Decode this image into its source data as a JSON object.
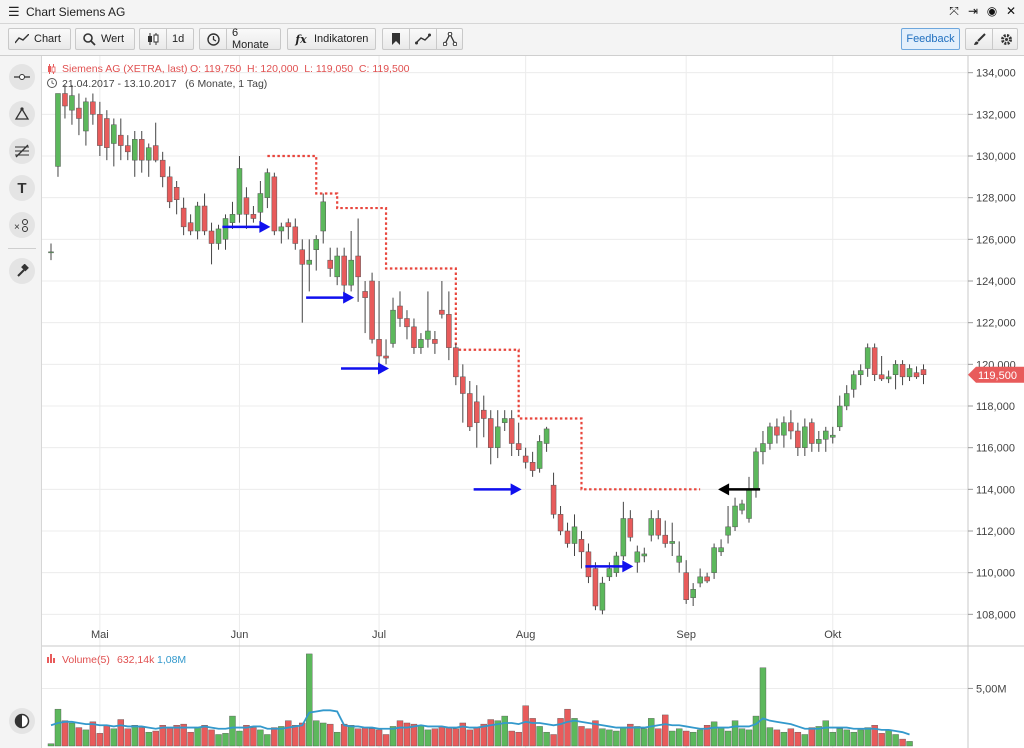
{
  "window": {
    "title": "Chart Siemens AG"
  },
  "toolbar": {
    "chart_label": "Chart",
    "wert_label": "Wert",
    "interval_label": "1d",
    "range_label": "6 Monate",
    "indicators_label": "Indikatoren",
    "feedback_label": "Feedback"
  },
  "legend": {
    "instrument": "Siemens AG (XETRA, last)",
    "ohlc": "O: 119,750  H: 120,000  L: 119,050  C: 119,500",
    "period": "21.04.2017 - 13.10.2017   (6 Monate, 1 Tag)",
    "volume_label": "Volume(5)",
    "volume_value": "632,14k",
    "volume_avg": "1,08M"
  },
  "colors": {
    "up": "#5cb85c",
    "down": "#e85b5b",
    "stop": "#e8453c",
    "arrow": "#1010ee",
    "avg": "#3399cc",
    "grid": "#ececec"
  },
  "chart_data": {
    "type": "candlestick",
    "instrument": "Siemens AG",
    "last_price_label": "119,500",
    "ylim": [
      107.2,
      134.8
    ],
    "yticks": [
      108,
      110,
      112,
      114,
      116,
      118,
      120,
      122,
      124,
      126,
      128,
      130,
      132,
      134
    ],
    "ytick_labels": [
      "108,000",
      "110,000",
      "112,000",
      "114,000",
      "116,000",
      "118,000",
      "120,000",
      "122,000",
      "124,000",
      "126,000",
      "128,000",
      "130,000",
      "132,000",
      "134,000"
    ],
    "xlabels": [
      {
        "label": "Mai",
        "index": 7
      },
      {
        "label": "Jun",
        "index": 27
      },
      {
        "label": "Jul",
        "index": 47
      },
      {
        "label": "Aug",
        "index": 68
      },
      {
        "label": "Sep",
        "index": 91
      },
      {
        "label": "Okt",
        "index": 112
      }
    ],
    "candles": [
      [
        125.4,
        125.8,
        125.0,
        125.4
      ],
      [
        129.5,
        133.0,
        129.0,
        133.0
      ],
      [
        133.0,
        133.4,
        131.8,
        132.4
      ],
      [
        132.2,
        133.4,
        131.5,
        132.9
      ],
      [
        132.3,
        133.0,
        131.0,
        131.8
      ],
      [
        131.2,
        132.8,
        130.5,
        132.6
      ],
      [
        132.6,
        133.0,
        131.5,
        132.0
      ],
      [
        132.0,
        132.6,
        130.0,
        130.5
      ],
      [
        131.8,
        132.2,
        129.8,
        130.4
      ],
      [
        130.6,
        131.8,
        129.5,
        131.5
      ],
      [
        131.0,
        131.8,
        129.8,
        130.5
      ],
      [
        130.5,
        131.0,
        129.8,
        130.2
      ],
      [
        129.8,
        131.2,
        129.0,
        130.8
      ],
      [
        130.8,
        131.2,
        129.2,
        129.8
      ],
      [
        129.8,
        130.6,
        129.0,
        130.4
      ],
      [
        130.5,
        131.6,
        129.7,
        129.8
      ],
      [
        129.8,
        130.2,
        128.5,
        129.0
      ],
      [
        129.0,
        129.5,
        127.5,
        127.8
      ],
      [
        128.5,
        128.8,
        127.2,
        127.9
      ],
      [
        127.5,
        128.0,
        126.2,
        126.6
      ],
      [
        126.8,
        127.2,
        126.2,
        126.4
      ],
      [
        126.4,
        127.8,
        126.0,
        127.6
      ],
      [
        127.6,
        128.2,
        126.2,
        126.4
      ],
      [
        126.4,
        126.8,
        124.8,
        125.8
      ],
      [
        125.8,
        126.7,
        125.5,
        126.5
      ],
      [
        126.0,
        127.2,
        125.5,
        127.0
      ],
      [
        126.8,
        127.8,
        126.5,
        127.2
      ],
      [
        127.2,
        130.0,
        126.8,
        129.4
      ],
      [
        128.0,
        128.5,
        126.5,
        127.2
      ],
      [
        127.2,
        127.6,
        126.8,
        127.0
      ],
      [
        127.3,
        128.8,
        126.8,
        128.2
      ],
      [
        128.0,
        129.4,
        127.5,
        129.2
      ],
      [
        129.0,
        129.2,
        126.2,
        126.4
      ],
      [
        126.4,
        126.8,
        125.8,
        126.6
      ],
      [
        126.8,
        127.0,
        126.0,
        126.6
      ],
      [
        126.6,
        127.0,
        125.5,
        125.8
      ],
      [
        125.5,
        126.0,
        122.0,
        124.8
      ],
      [
        124.8,
        126.0,
        123.5,
        125.0
      ],
      [
        125.5,
        126.2,
        124.5,
        126.0
      ],
      [
        126.4,
        128.2,
        125.8,
        127.8
      ],
      [
        125.0,
        125.6,
        124.2,
        124.6
      ],
      [
        124.2,
        125.6,
        123.8,
        125.2
      ],
      [
        125.2,
        125.6,
        123.2,
        123.8
      ],
      [
        123.8,
        126.4,
        123.5,
        125.0
      ],
      [
        125.2,
        127.0,
        123.0,
        124.2
      ],
      [
        123.5,
        124.0,
        121.5,
        123.2
      ],
      [
        124.0,
        124.4,
        121.0,
        121.2
      ],
      [
        121.2,
        124.0,
        120.0,
        120.4
      ],
      [
        120.4,
        121.2,
        120.0,
        120.3
      ],
      [
        121.0,
        123.2,
        120.8,
        122.6
      ],
      [
        122.8,
        123.5,
        121.8,
        122.2
      ],
      [
        122.2,
        122.6,
        121.2,
        121.8
      ],
      [
        121.8,
        122.2,
        120.5,
        120.8
      ],
      [
        120.8,
        121.5,
        120.5,
        121.2
      ],
      [
        121.2,
        123.5,
        120.8,
        121.6
      ],
      [
        121.2,
        121.6,
        120.5,
        121.0
      ],
      [
        122.6,
        124.0,
        122.2,
        122.4
      ],
      [
        122.4,
        123.5,
        120.2,
        120.8
      ],
      [
        120.8,
        121.0,
        119.0,
        119.4
      ],
      [
        119.4,
        120.0,
        117.2,
        118.6
      ],
      [
        118.6,
        119.2,
        116.8,
        117.0
      ],
      [
        118.2,
        119.0,
        116.0,
        117.2
      ],
      [
        117.8,
        118.5,
        116.5,
        117.4
      ],
      [
        117.4,
        117.8,
        115.2,
        116.0
      ],
      [
        116.0,
        117.8,
        115.5,
        117.0
      ],
      [
        117.2,
        117.8,
        116.8,
        117.4
      ],
      [
        117.4,
        117.8,
        115.6,
        116.2
      ],
      [
        116.2,
        117.2,
        115.6,
        115.9
      ],
      [
        115.6,
        116.0,
        115.0,
        115.3
      ],
      [
        115.3,
        115.8,
        114.6,
        114.9
      ],
      [
        115.0,
        116.6,
        114.8,
        116.3
      ],
      [
        116.2,
        117.0,
        115.8,
        116.9
      ],
      [
        114.2,
        114.8,
        112.6,
        112.8
      ],
      [
        112.8,
        113.2,
        111.8,
        112.0
      ],
      [
        112.0,
        112.4,
        111.2,
        111.4
      ],
      [
        111.4,
        112.8,
        110.8,
        112.2
      ],
      [
        111.6,
        112.0,
        110.2,
        111.0
      ],
      [
        111.0,
        111.4,
        109.5,
        109.8
      ],
      [
        110.2,
        110.5,
        108.2,
        108.4
      ],
      [
        108.2,
        109.8,
        108.0,
        109.5
      ],
      [
        109.8,
        110.5,
        109.6,
        110.2
      ],
      [
        110.0,
        111.0,
        109.8,
        110.8
      ],
      [
        110.8,
        113.4,
        110.6,
        112.6
      ],
      [
        112.6,
        113.0,
        111.5,
        111.7
      ],
      [
        110.5,
        111.3,
        110.0,
        111.0
      ],
      [
        110.8,
        111.2,
        110.5,
        110.9
      ],
      [
        111.8,
        113.0,
        111.5,
        112.6
      ],
      [
        112.6,
        113.0,
        111.6,
        111.8
      ],
      [
        111.8,
        112.5,
        111.2,
        111.4
      ],
      [
        111.4,
        112.4,
        110.8,
        111.5
      ],
      [
        110.5,
        111.5,
        110.0,
        110.8
      ],
      [
        110.0,
        110.6,
        108.5,
        108.7
      ],
      [
        108.8,
        109.5,
        108.4,
        109.2
      ],
      [
        109.5,
        110.2,
        109.3,
        109.8
      ],
      [
        109.8,
        110.0,
        109.5,
        109.6
      ],
      [
        110.0,
        111.4,
        109.7,
        111.2
      ],
      [
        111.0,
        111.6,
        110.8,
        111.2
      ],
      [
        111.8,
        113.2,
        111.4,
        112.2
      ],
      [
        112.2,
        113.6,
        112.0,
        113.2
      ],
      [
        113.0,
        113.5,
        112.8,
        113.3
      ],
      [
        112.6,
        114.6,
        112.4,
        114.0
      ],
      [
        114.0,
        116.0,
        113.6,
        115.8
      ],
      [
        115.8,
        116.8,
        115.2,
        116.2
      ],
      [
        116.2,
        117.2,
        115.9,
        117.0
      ],
      [
        117.0,
        117.4,
        116.2,
        116.6
      ],
      [
        116.6,
        117.5,
        116.0,
        117.2
      ],
      [
        117.2,
        117.8,
        116.4,
        116.8
      ],
      [
        116.8,
        117.2,
        115.6,
        116.0
      ],
      [
        116.0,
        117.4,
        115.6,
        117.0
      ],
      [
        117.2,
        117.4,
        115.8,
        116.2
      ],
      [
        116.2,
        116.8,
        115.8,
        116.4
      ],
      [
        116.4,
        117.0,
        115.8,
        116.8
      ],
      [
        116.5,
        117.0,
        116.2,
        116.6
      ],
      [
        117.0,
        118.5,
        116.8,
        118.0
      ],
      [
        118.0,
        119.0,
        117.8,
        118.6
      ],
      [
        118.8,
        119.7,
        118.4,
        119.5
      ],
      [
        119.5,
        120.0,
        119.0,
        119.7
      ],
      [
        119.8,
        121.0,
        119.4,
        120.8
      ],
      [
        120.8,
        121.0,
        119.2,
        119.5
      ],
      [
        119.5,
        120.4,
        119.2,
        119.3
      ],
      [
        119.3,
        119.7,
        119.1,
        119.4
      ],
      [
        119.5,
        120.2,
        118.8,
        120.0
      ],
      [
        120.0,
        120.2,
        119.0,
        119.4
      ],
      [
        119.4,
        120.0,
        119.2,
        119.8
      ],
      [
        119.6,
        119.9,
        119.3,
        119.4
      ],
      [
        119.75,
        120.0,
        119.05,
        119.5
      ]
    ],
    "stop_levels": [
      {
        "from": 31,
        "to": 38,
        "value": 130.0
      },
      {
        "from": 38,
        "to": 41,
        "value": 128.2
      },
      {
        "from": 41,
        "to": 48,
        "value": 127.5
      },
      {
        "from": 48,
        "to": 58,
        "value": 124.6
      },
      {
        "from": 58,
        "to": 67,
        "value": 120.7
      },
      {
        "from": 67,
        "to": 76,
        "value": 117.4
      },
      {
        "from": 76,
        "to": 93,
        "value": 114.0
      }
    ],
    "signal_arrows": [
      {
        "index": 32,
        "value": 126.6,
        "direction": "right"
      },
      {
        "index": 44,
        "value": 123.2,
        "direction": "right"
      },
      {
        "index": 49,
        "value": 119.8,
        "direction": "right"
      },
      {
        "index": 68,
        "value": 114.0,
        "direction": "right"
      },
      {
        "index": 84,
        "value": 110.3,
        "direction": "right"
      },
      {
        "index": 95,
        "value": 114.0,
        "direction": "left"
      }
    ],
    "volume": {
      "ylim": [
        0,
        8.6
      ],
      "ytick_value": 5.0,
      "ytick_label": "5,00M",
      "values": [
        0.2,
        3.2,
        2.2,
        2.0,
        1.6,
        1.4,
        2.1,
        1.1,
        1.8,
        1.5,
        2.3,
        1.5,
        1.8,
        1.6,
        1.2,
        1.3,
        1.8,
        1.6,
        1.8,
        1.9,
        1.2,
        1.6,
        1.8,
        1.4,
        1.0,
        1.1,
        2.6,
        1.3,
        1.8,
        1.6,
        1.4,
        1.0,
        1.6,
        1.7,
        2.2,
        1.8,
        2.0,
        8.0,
        2.2,
        2.0,
        1.9,
        1.2,
        1.9,
        1.8,
        1.5,
        1.6,
        1.5,
        1.4,
        1.0,
        1.7,
        2.2,
        2.0,
        1.9,
        1.8,
        1.4,
        1.5,
        1.7,
        1.6,
        1.5,
        2.0,
        1.4,
        1.6,
        1.9,
        2.3,
        2.2,
        2.6,
        1.3,
        1.2,
        3.5,
        2.4,
        1.7,
        1.2,
        1.0,
        2.4,
        3.2,
        2.4,
        1.7,
        1.5,
        2.2,
        1.5,
        1.4,
        1.3,
        1.6,
        1.9,
        1.7,
        1.5,
        2.4,
        1.5,
        2.7,
        1.3,
        1.5,
        1.3,
        1.2,
        1.4,
        1.8,
        2.1,
        1.6,
        1.3,
        2.2,
        1.5,
        1.4,
        2.6,
        6.8,
        1.6,
        1.4,
        1.2,
        1.5,
        1.2,
        1.0,
        1.6,
        1.7,
        2.2,
        1.2,
        1.5,
        1.4,
        1.2,
        1.4,
        1.6,
        1.8,
        1.1,
        1.4,
        1.0,
        0.6,
        0.4
      ],
      "avg": [
        1.8,
        2.0,
        2.1,
        2.1,
        2.0,
        1.9,
        1.9,
        1.8,
        1.8,
        1.7,
        1.8,
        1.7,
        1.7,
        1.7,
        1.6,
        1.5,
        1.6,
        1.6,
        1.6,
        1.6,
        1.6,
        1.6,
        1.7,
        1.6,
        1.5,
        1.5,
        1.6,
        1.6,
        1.6,
        1.7,
        1.7,
        1.5,
        1.5,
        1.5,
        1.6,
        1.7,
        1.8,
        2.9,
        3.0,
        3.1,
        3.1,
        3.0,
        1.8,
        1.7,
        1.7,
        1.6,
        1.6,
        1.5,
        1.5,
        1.5,
        1.6,
        1.6,
        1.7,
        1.8,
        1.7,
        1.7,
        1.7,
        1.6,
        1.6,
        1.7,
        1.6,
        1.6,
        1.7,
        1.8,
        1.9,
        2.0,
        2.0,
        1.9,
        2.1,
        2.0,
        2.0,
        1.9,
        1.8,
        1.9,
        2.1,
        2.2,
        2.1,
        2.0,
        1.9,
        1.8,
        1.7,
        1.6,
        1.6,
        1.6,
        1.6,
        1.6,
        1.7,
        1.8,
        1.9,
        1.8,
        1.8,
        1.7,
        1.6,
        1.5,
        1.5,
        1.6,
        1.6,
        1.6,
        1.7,
        1.7,
        1.7,
        1.9,
        2.4,
        2.2,
        2.1,
        2.0,
        1.9,
        1.7,
        1.5,
        1.5,
        1.5,
        1.6,
        1.6,
        1.6,
        1.6,
        1.5,
        1.5,
        1.5,
        1.5,
        1.4,
        1.4,
        1.3,
        1.2,
        1.0
      ]
    }
  }
}
